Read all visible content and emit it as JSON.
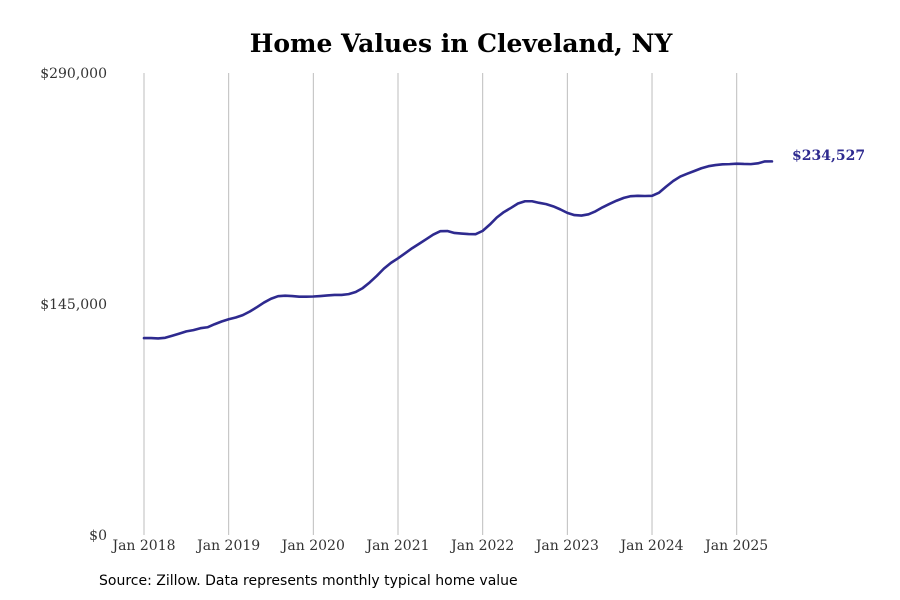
{
  "chart_data": {
    "type": "line",
    "title": "Home Values in Cleveland, NY",
    "xlabel": "",
    "ylabel": "",
    "ylim": [
      0,
      290000
    ],
    "y_ticks": [
      0,
      145000,
      290000
    ],
    "y_tick_labels": [
      "$0",
      "$145,000",
      "$290,000"
    ],
    "x_ticks": [
      "2018-01",
      "2019-01",
      "2020-01",
      "2021-01",
      "2022-01",
      "2023-01",
      "2024-01",
      "2025-01"
    ],
    "x_tick_labels": [
      "Jan 2018",
      "Jan 2019",
      "Jan 2020",
      "Jan 2021",
      "Jan 2022",
      "Jan 2023",
      "Jan 2024",
      "Jan 2025"
    ],
    "grid": "vertical",
    "line_color": "#2e2a8f",
    "end_label": "$234,527",
    "series": [
      {
        "x": [
          "2018-01",
          "2018-02",
          "2018-03",
          "2018-04",
          "2018-05",
          "2018-06",
          "2018-07",
          "2018-08",
          "2018-09",
          "2018-10",
          "2018-11",
          "2018-12",
          "2019-01",
          "2019-02",
          "2019-03",
          "2019-04",
          "2019-05",
          "2019-06",
          "2019-07",
          "2019-08",
          "2019-09",
          "2019-10",
          "2019-11",
          "2019-12",
          "2020-01",
          "2020-02",
          "2020-03",
          "2020-04",
          "2020-05",
          "2020-06",
          "2020-07",
          "2020-08",
          "2020-09",
          "2020-10",
          "2020-11",
          "2020-12",
          "2021-01",
          "2021-02",
          "2021-03",
          "2021-04",
          "2021-05",
          "2021-06",
          "2021-07",
          "2021-08",
          "2021-09",
          "2021-10",
          "2021-11",
          "2021-12",
          "2022-01",
          "2022-02",
          "2022-03",
          "2022-04",
          "2022-05",
          "2022-06",
          "2022-07",
          "2022-08",
          "2022-09",
          "2022-10",
          "2022-11",
          "2022-12",
          "2023-01",
          "2023-02",
          "2023-03",
          "2023-04",
          "2023-05",
          "2023-06",
          "2023-07",
          "2023-08",
          "2023-09",
          "2023-10",
          "2023-11",
          "2023-12",
          "2024-01",
          "2024-02",
          "2024-03",
          "2024-04",
          "2024-05",
          "2024-06",
          "2024-07",
          "2024-08",
          "2024-09",
          "2024-10",
          "2024-11",
          "2024-12",
          "2025-01",
          "2025-02",
          "2025-03",
          "2025-04",
          "2025-05",
          "2025-06"
        ],
        "values": [
          123600,
          123600,
          123400,
          123800,
          125100,
          126400,
          127800,
          128600,
          129800,
          130400,
          132300,
          134000,
          135400,
          136500,
          138000,
          140300,
          143000,
          145900,
          148300,
          149900,
          150200,
          150000,
          149600,
          149600,
          149700,
          150000,
          150400,
          150700,
          150700,
          151200,
          152500,
          155000,
          158600,
          162700,
          167200,
          170800,
          173700,
          176800,
          180000,
          182800,
          185700,
          188600,
          190700,
          190800,
          189600,
          189200,
          188900,
          188800,
          190900,
          194800,
          199300,
          202700,
          205300,
          208100,
          209500,
          209500,
          208500,
          207700,
          206300,
          204400,
          202200,
          200800,
          200500,
          201300,
          203200,
          205700,
          207900,
          209900,
          211600,
          212700,
          212900,
          212800,
          212900,
          214900,
          218700,
          222200,
          225000,
          226800,
          228500,
          230200,
          231500,
          232200,
          232700,
          232800,
          233100,
          232900,
          232800,
          233300,
          234500,
          234527
        ]
      }
    ]
  },
  "source_text": "Source: Zillow. Data represents monthly typical home value"
}
